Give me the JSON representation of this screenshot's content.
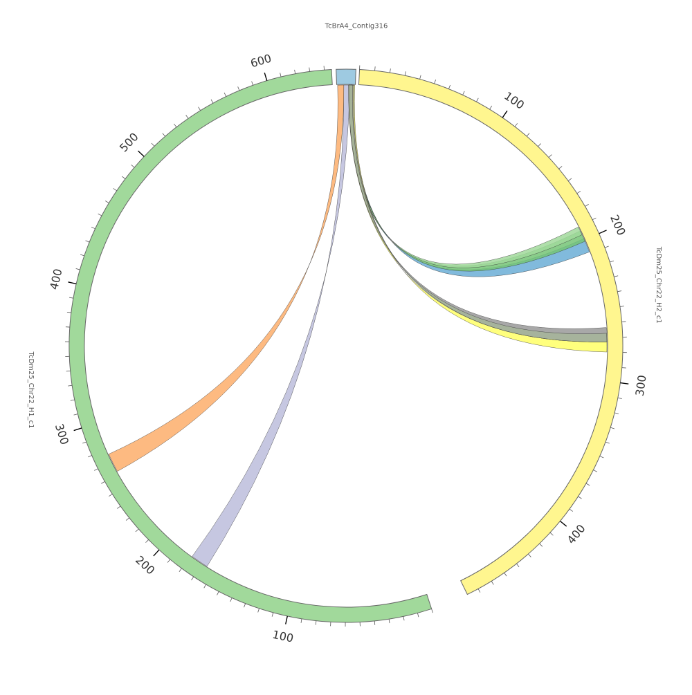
{
  "diagram": {
    "type": "circos",
    "segments": [
      {
        "id": "contig",
        "name": "TcBrA4_Contig316",
        "length": 6,
        "color": "#9ecae1",
        "tick_step": null,
        "label_step": null
      },
      {
        "id": "h2",
        "name": "TcDm25_Chr22_H2_c1",
        "length": 478,
        "color": "#fff68f",
        "tick_step": 10,
        "label_step": 100
      },
      {
        "id": "h1",
        "name": "TcDm25_Chr22_H1_c1",
        "length": 645,
        "color": "#a1d99b",
        "tick_step": 10,
        "label_step": 100
      }
    ],
    "links": [
      {
        "from": "contig",
        "from_start": 0.3,
        "from_end": 2.3,
        "to": "h1",
        "to_start": 262,
        "to_end": 276,
        "color": "#fdae6b"
      },
      {
        "from": "contig",
        "from_start": 2.3,
        "from_end": 4.2,
        "to": "h1",
        "to_start": 166,
        "to_end": 179,
        "color": "#bcbddc"
      },
      {
        "from": "contig",
        "from_start": 4.4,
        "from_end": 5.6,
        "to": "h2",
        "to_start": 199,
        "to_end": 209,
        "color": "#6baed6"
      },
      {
        "from": "contig",
        "from_start": 4.5,
        "from_end": 5.4,
        "to": "h2",
        "to_start": 193,
        "to_end": 201,
        "color": "#74c476"
      },
      {
        "from": "contig",
        "from_start": 4.6,
        "from_end": 5.2,
        "to": "h2",
        "to_start": 190,
        "to_end": 196,
        "color": "#a1d99b"
      },
      {
        "from": "contig",
        "from_start": 3.8,
        "from_end": 5.8,
        "to": "h2",
        "to_start": 273,
        "to_end": 280,
        "color": "#ffff66"
      },
      {
        "from": "contig",
        "from_start": 3.9,
        "from_end": 5.5,
        "to": "h2",
        "to_start": 263,
        "to_end": 273,
        "color": "#999999"
      },
      {
        "from": "contig",
        "from_start": 3.9,
        "from_end": 5.1,
        "to": "h2",
        "to_start": 267,
        "to_end": 273,
        "color": "#a6b59a"
      }
    ]
  }
}
